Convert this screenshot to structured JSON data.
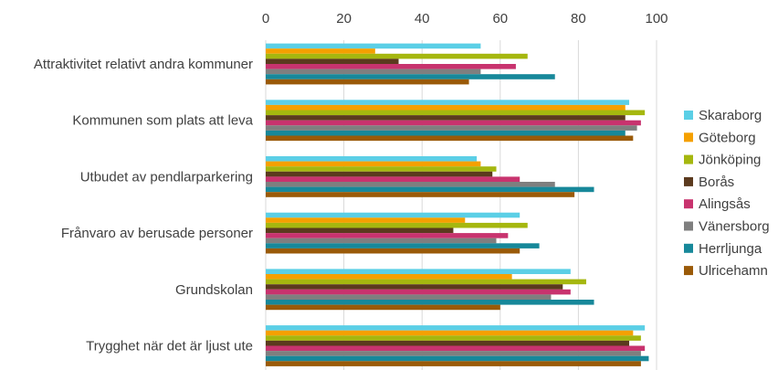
{
  "chart_data": {
    "type": "bar",
    "orientation": "horizontal",
    "xlim": [
      0,
      100
    ],
    "x_ticks": [
      "0",
      "20",
      "40",
      "60",
      "80",
      "100"
    ],
    "grid": true,
    "legend_position": "right",
    "categories": [
      "Attraktivitet relativt andra kommuner",
      "Kommunen som plats att leva",
      "Utbudet av pendlarparkering",
      "Frånvaro av berusade personer",
      "Grundskolan",
      "Trygghet när det är ljust ute"
    ],
    "series": [
      {
        "name": "Skaraborg",
        "color": "#5bcfe6",
        "values": [
          55,
          93,
          54,
          65,
          78,
          97
        ]
      },
      {
        "name": "Göteborg",
        "color": "#f5a000",
        "values": [
          28,
          92,
          55,
          51,
          63,
          94
        ]
      },
      {
        "name": "Jönköping",
        "color": "#a5b70f",
        "values": [
          67,
          97,
          59,
          67,
          82,
          96
        ]
      },
      {
        "name": "Borås",
        "color": "#5b3a1e",
        "values": [
          34,
          92,
          58,
          48,
          76,
          93
        ]
      },
      {
        "name": "Alingsås",
        "color": "#c8336e",
        "values": [
          64,
          96,
          65,
          62,
          78,
          97
        ]
      },
      {
        "name": "Vänersborg",
        "color": "#7f7f7f",
        "values": [
          55,
          95,
          74,
          59,
          73,
          96
        ]
      },
      {
        "name": "Herrljunga",
        "color": "#17889a",
        "values": [
          74,
          92,
          84,
          70,
          84,
          98
        ]
      },
      {
        "name": "Ulricehamn",
        "color": "#9a5a08",
        "values": [
          52,
          94,
          79,
          65,
          60,
          96
        ]
      }
    ]
  }
}
